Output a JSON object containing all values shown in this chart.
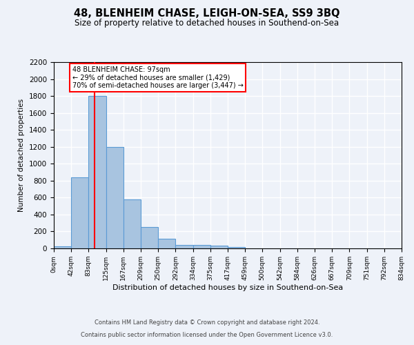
{
  "title": "48, BLENHEIM CHASE, LEIGH-ON-SEA, SS9 3BQ",
  "subtitle": "Size of property relative to detached houses in Southend-on-Sea",
  "xlabel": "Distribution of detached houses by size in Southend-on-Sea",
  "ylabel": "Number of detached properties",
  "bar_values": [
    25,
    840,
    1800,
    1200,
    580,
    255,
    115,
    40,
    40,
    30,
    15,
    0,
    0,
    0,
    0,
    0,
    0,
    0,
    0,
    0
  ],
  "bin_edges": [
    0,
    42,
    83,
    125,
    167,
    209,
    250,
    292,
    334,
    375,
    417,
    459,
    500,
    542,
    584,
    626,
    667,
    709,
    751,
    792,
    834
  ],
  "tick_labels": [
    "0sqm",
    "42sqm",
    "83sqm",
    "125sqm",
    "167sqm",
    "209sqm",
    "250sqm",
    "292sqm",
    "334sqm",
    "375sqm",
    "417sqm",
    "459sqm",
    "500sqm",
    "542sqm",
    "584sqm",
    "626sqm",
    "667sqm",
    "709sqm",
    "751sqm",
    "792sqm",
    "834sqm"
  ],
  "bar_color": "#a8c4e0",
  "bar_edge_color": "#5b9bd5",
  "vline_x": 97,
  "vline_color": "red",
  "ylim": [
    0,
    2200
  ],
  "yticks": [
    0,
    200,
    400,
    600,
    800,
    1000,
    1200,
    1400,
    1600,
    1800,
    2000,
    2200
  ],
  "annotation_text": "48 BLENHEIM CHASE: 97sqm\n← 29% of detached houses are smaller (1,429)\n70% of semi-detached houses are larger (3,447) →",
  "annotation_box_color": "white",
  "annotation_box_edge": "red",
  "footer_line1": "Contains HM Land Registry data © Crown copyright and database right 2024.",
  "footer_line2": "Contains public sector information licensed under the Open Government Licence v3.0.",
  "bg_color": "#eef2f9",
  "grid_color": "white"
}
